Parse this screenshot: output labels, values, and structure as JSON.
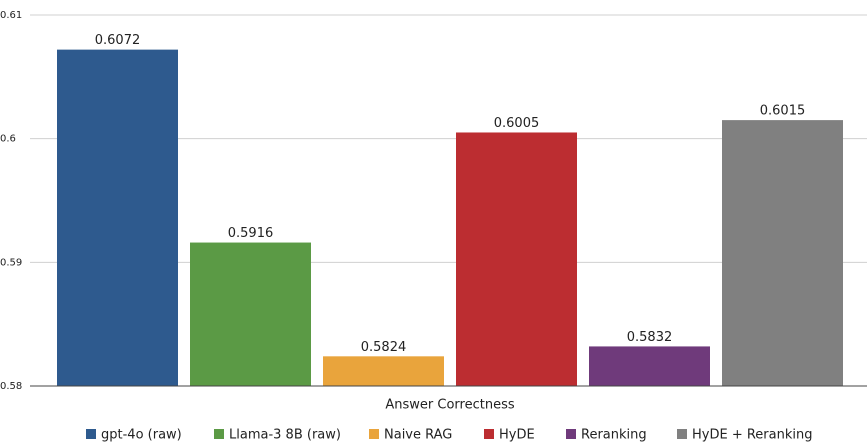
{
  "chart_data": {
    "type": "bar",
    "x_label": "Answer Correctness",
    "ylim": [
      0.58,
      0.61
    ],
    "yticks": [
      0.58,
      0.59,
      0.6,
      0.61
    ],
    "grid": true,
    "legend": "bottom",
    "series": [
      {
        "name": "gpt-4o (raw)",
        "color": "#2e5a8e",
        "values": [
          0.6072
        ]
      },
      {
        "name": "Llama-3 8B (raw)",
        "color": "#5b9a45",
        "values": [
          0.5916
        ]
      },
      {
        "name": "Naive RAG",
        "color": "#e9a43c",
        "values": [
          0.5824
        ]
      },
      {
        "name": "HyDE",
        "color": "#bc2d31",
        "values": [
          0.6005
        ]
      },
      {
        "name": "Reranking",
        "color": "#6f3a7b",
        "values": [
          0.5832
        ]
      },
      {
        "name": "HyDE + Reranking",
        "color": "#808080",
        "values": [
          0.6015
        ]
      }
    ]
  }
}
